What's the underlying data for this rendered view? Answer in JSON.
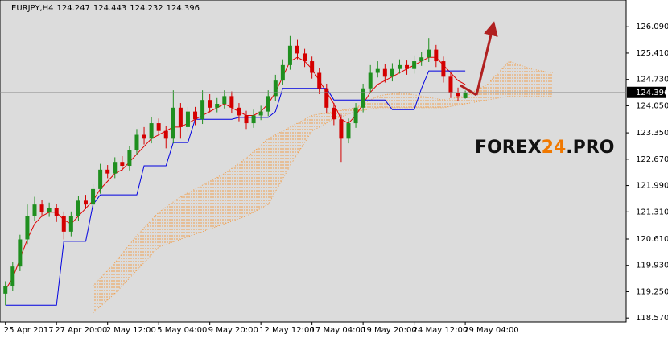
{
  "chart_data": {
    "type": "candlestick",
    "symbol": "EURJPY,H4",
    "header_values": [
      124.247,
      124.443,
      124.232,
      124.396
    ],
    "watermark": [
      "FOREX",
      "24",
      ".PRO"
    ],
    "xlim": [
      -0.3,
      84.6
    ],
    "xticks": [
      {
        "value": 0,
        "label": "25 Apr 2017"
      },
      {
        "value": 7,
        "label": "27 Apr 20:00"
      },
      {
        "value": 14,
        "label": "2 May 12:00"
      },
      {
        "value": 21,
        "label": "5 May 04:00"
      },
      {
        "value": 28,
        "label": "9 May 20:00"
      },
      {
        "value": 35,
        "label": "12 May 12:00"
      },
      {
        "value": 42,
        "label": "17 May 04:00"
      },
      {
        "value": 49,
        "label": "19 May 20:00"
      },
      {
        "value": 56,
        "label": "24 May 12:00"
      },
      {
        "value": 63,
        "label": "29 May 04:00"
      }
    ],
    "ylim": [
      118.47,
      126.78
    ],
    "yticks": [
      {
        "value": 126.09,
        "label": "126.090"
      },
      {
        "value": 125.41,
        "label": "125.410"
      },
      {
        "value": 124.73,
        "label": "124.730"
      },
      {
        "value": 124.05,
        "label": "124.050"
      },
      {
        "value": 123.35,
        "label": "123.350"
      },
      {
        "value": 122.67,
        "label": "122.670"
      },
      {
        "value": 121.99,
        "label": "121.990"
      },
      {
        "value": 121.31,
        "label": "121.310"
      },
      {
        "value": 120.61,
        "label": "120.610"
      },
      {
        "value": 119.93,
        "label": "119.930"
      },
      {
        "value": 119.25,
        "label": "119.250"
      },
      {
        "value": 118.57,
        "label": "118.570"
      }
    ],
    "grid": false,
    "up_color": "#1f8f1f",
    "down_color": "#d40000",
    "open": [
      119.2,
      119.4,
      119.9,
      120.6,
      121.2,
      121.5,
      121.3,
      121.4,
      121.2,
      120.8,
      121.2,
      121.6,
      121.5,
      121.9,
      122.4,
      122.3,
      122.6,
      122.5,
      122.9,
      123.3,
      123.2,
      123.6,
      123.4,
      123.2,
      124.0,
      123.5,
      123.9,
      123.7,
      124.2,
      124.0,
      124.1,
      124.3,
      124.0,
      123.8,
      123.6,
      123.8,
      123.9,
      124.3,
      124.7,
      125.1,
      125.6,
      125.4,
      125.2,
      124.9,
      124.5,
      124.0,
      123.7,
      123.2,
      123.6,
      124.0,
      124.5,
      124.9,
      125.0,
      124.8,
      125.0,
      125.1,
      125.0,
      125.2,
      125.3,
      125.5,
      125.2,
      124.8,
      124.4,
      124.247
    ],
    "high": [
      119.52,
      120.02,
      120.72,
      121.5,
      121.7,
      121.62,
      121.55,
      121.52,
      121.32,
      121.32,
      121.72,
      121.75,
      122.02,
      122.55,
      122.52,
      122.72,
      122.75,
      123.02,
      123.45,
      123.5,
      123.75,
      123.72,
      123.52,
      124.45,
      124.12,
      124.02,
      124.02,
      124.45,
      124.35,
      124.25,
      124.45,
      124.42,
      124.12,
      123.92,
      123.95,
      124.05,
      124.45,
      124.85,
      125.25,
      125.85,
      125.75,
      125.52,
      125.32,
      125.02,
      124.62,
      124.12,
      123.82,
      123.72,
      124.12,
      124.62,
      125.1,
      125.2,
      125.12,
      125.15,
      125.25,
      125.22,
      125.35,
      125.45,
      125.8,
      125.62,
      125.32,
      124.92,
      124.52,
      124.443
    ],
    "low": [
      118.9,
      119.28,
      119.78,
      120.48,
      121.08,
      121.18,
      121.18,
      121.05,
      120.6,
      120.68,
      121.08,
      121.38,
      121.38,
      121.78,
      122.18,
      122.18,
      122.38,
      122.38,
      122.78,
      123.05,
      123.08,
      123.28,
      122.95,
      123.08,
      123.2,
      123.38,
      123.55,
      123.58,
      123.88,
      123.88,
      123.98,
      123.85,
      123.65,
      123.45,
      123.48,
      123.68,
      123.78,
      124.18,
      124.58,
      124.98,
      125.25,
      125.05,
      124.75,
      124.35,
      123.85,
      123.55,
      122.6,
      123.08,
      123.48,
      123.88,
      124.38,
      124.78,
      124.65,
      124.68,
      124.88,
      124.85,
      124.88,
      125.08,
      125.18,
      125.05,
      124.65,
      124.25,
      124.18,
      124.232
    ],
    "close": [
      119.4,
      119.9,
      120.6,
      121.2,
      121.5,
      121.3,
      121.4,
      121.2,
      120.8,
      121.2,
      121.6,
      121.5,
      121.9,
      122.4,
      122.3,
      122.6,
      122.5,
      122.9,
      123.3,
      123.2,
      123.6,
      123.4,
      123.2,
      124.0,
      123.5,
      123.9,
      123.7,
      124.2,
      124.0,
      124.1,
      124.3,
      124.0,
      123.8,
      123.6,
      123.8,
      123.9,
      124.3,
      124.7,
      125.1,
      125.6,
      125.4,
      125.2,
      124.9,
      124.5,
      124.0,
      123.7,
      123.2,
      123.6,
      124.0,
      124.5,
      124.9,
      125.0,
      124.8,
      125.0,
      125.1,
      125.0,
      125.2,
      125.3,
      125.5,
      125.2,
      124.8,
      124.4,
      124.3,
      124.396
    ],
    "lines": [
      {
        "color": "#e00000",
        "values": [
          119.3,
          119.6,
          120.1,
          120.6,
          121.0,
          121.2,
          121.3,
          121.3,
          121.1,
          121.0,
          121.2,
          121.4,
          121.6,
          121.9,
          122.1,
          122.3,
          122.4,
          122.6,
          122.8,
          123.0,
          123.2,
          123.3,
          123.4,
          123.5,
          123.5,
          123.6,
          123.7,
          123.8,
          123.9,
          124.0,
          124.1,
          124.0,
          123.9,
          123.8,
          123.8,
          123.9,
          124.1,
          124.4,
          124.8,
          125.2,
          125.3,
          125.2,
          125.0,
          124.7,
          124.4,
          124.1,
          123.7,
          123.6,
          123.8,
          124.1,
          124.4,
          124.6,
          124.7,
          124.8,
          124.9,
          125.0,
          125.1,
          125.2,
          125.3,
          125.3,
          125.1,
          124.9,
          124.7,
          124.6
        ]
      },
      {
        "color": "#0000e0",
        "values": [
          118.9,
          118.9,
          118.9,
          118.9,
          118.9,
          118.9,
          118.9,
          118.9,
          120.55,
          120.55,
          120.55,
          120.55,
          121.5,
          121.75,
          121.75,
          121.75,
          121.75,
          121.75,
          121.75,
          122.5,
          122.5,
          122.5,
          122.5,
          123.1,
          123.1,
          123.1,
          123.7,
          123.7,
          123.7,
          123.7,
          123.7,
          123.7,
          123.75,
          123.75,
          123.75,
          123.75,
          123.75,
          123.9,
          124.5,
          124.5,
          124.5,
          124.5,
          124.5,
          124.5,
          124.5,
          124.2,
          124.2,
          124.2,
          124.2,
          124.2,
          124.2,
          124.2,
          124.2,
          123.95,
          123.95,
          123.95,
          123.95,
          124.5,
          124.95,
          124.95,
          124.95,
          124.95,
          124.95,
          124.95
        ]
      }
    ],
    "cloud": {
      "color": "#f0a050",
      "x": [
        12,
        15,
        18,
        21,
        24,
        27,
        30,
        33,
        36,
        39,
        42,
        45,
        48,
        51,
        54,
        57,
        60,
        63,
        66,
        69,
        72,
        75
      ],
      "upper": [
        119.4,
        120.0,
        120.7,
        121.3,
        121.7,
        122.0,
        122.3,
        122.7,
        123.2,
        123.5,
        123.8,
        123.9,
        124.0,
        124.3,
        124.4,
        124.3,
        124.2,
        124.3,
        124.6,
        125.2,
        125.0,
        124.9
      ],
      "lower": [
        118.7,
        119.2,
        119.8,
        120.4,
        120.6,
        120.8,
        121.0,
        121.2,
        121.5,
        122.5,
        123.4,
        123.7,
        123.9,
        124.0,
        124.0,
        124.0,
        124.0,
        124.1,
        124.2,
        124.3,
        124.3,
        124.3
      ]
    },
    "last_price": 124.396
  }
}
